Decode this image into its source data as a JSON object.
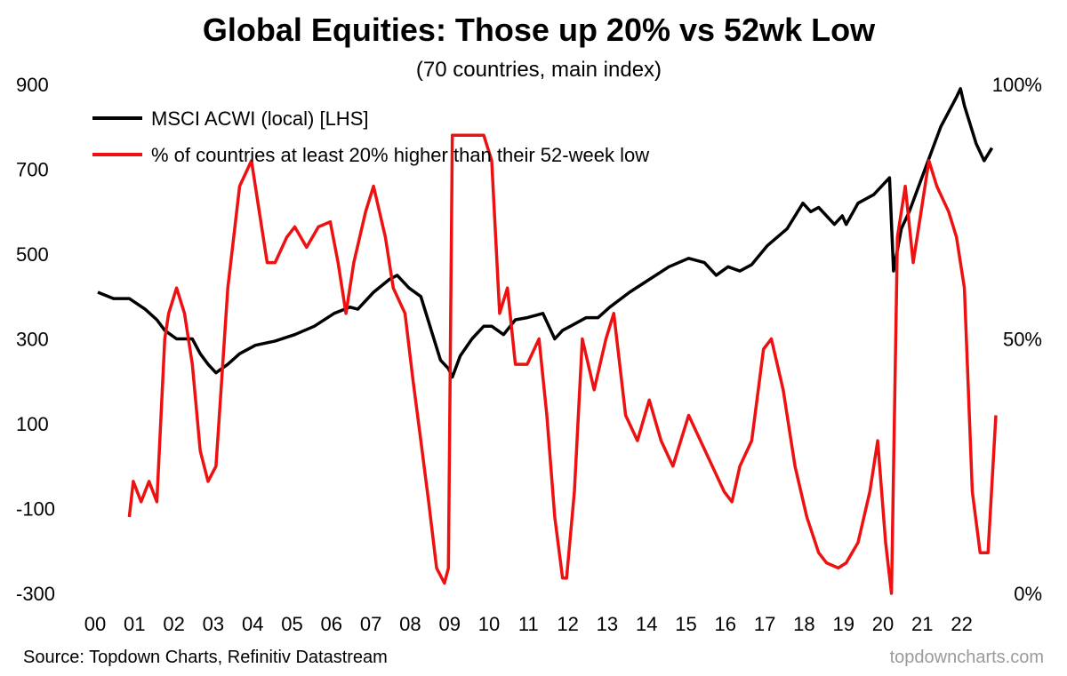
{
  "chart_data": {
    "type": "line",
    "title": "Global Equities: Those up 20% vs 52wk Low",
    "subtitle": "(70 countries, main index)",
    "source": "Source: Topdown Charts, Refinitiv Datastream",
    "brand": "topdowncharts.com",
    "x_tick_labels": [
      "00",
      "01",
      "02",
      "03",
      "04",
      "05",
      "06",
      "07",
      "08",
      "09",
      "10",
      "11",
      "12",
      "13",
      "14",
      "15",
      "16",
      "17",
      "18",
      "19",
      "20",
      "21",
      "22"
    ],
    "x_range": [
      2000.0,
      2023.0
    ],
    "left_axis": {
      "ticks": [
        900,
        700,
        500,
        300,
        100,
        -100,
        -300
      ],
      "labels": [
        "900",
        "700",
        "500",
        "300",
        "100",
        "-100",
        "-300"
      ],
      "range": [
        -300,
        900
      ]
    },
    "right_axis": {
      "ticks": [
        100,
        50,
        0
      ],
      "labels": [
        "100%",
        "50%",
        "0%"
      ],
      "range": [
        0,
        100
      ]
    },
    "series": [
      {
        "name": "MSCI ACWI (local) [LHS]",
        "axis": "left",
        "color": "#000000",
        "x": [
          2000.0,
          2000.4,
          2000.8,
          2001.2,
          2001.5,
          2001.7,
          2002.0,
          2002.4,
          2002.6,
          2002.8,
          2003.0,
          2003.3,
          2003.6,
          2004.0,
          2004.5,
          2005.0,
          2005.5,
          2006.0,
          2006.4,
          2006.6,
          2007.0,
          2007.4,
          2007.6,
          2007.9,
          2008.2,
          2008.5,
          2008.7,
          2008.9,
          2009.0,
          2009.2,
          2009.5,
          2009.8,
          2010.0,
          2010.3,
          2010.6,
          2010.9,
          2011.3,
          2011.6,
          2011.8,
          2012.0,
          2012.4,
          2012.7,
          2013.0,
          2013.5,
          2014.0,
          2014.5,
          2015.0,
          2015.4,
          2015.7,
          2016.0,
          2016.3,
          2016.6,
          2017.0,
          2017.5,
          2017.9,
          2018.1,
          2018.3,
          2018.7,
          2018.9,
          2019.0,
          2019.3,
          2019.7,
          2020.0,
          2020.1,
          2020.2,
          2020.4,
          2020.6,
          2021.0,
          2021.4,
          2021.8,
          2021.9,
          2022.0,
          2022.3,
          2022.5,
          2022.7
        ],
        "values": [
          410,
          395,
          395,
          370,
          345,
          320,
          300,
          300,
          265,
          240,
          220,
          240,
          265,
          285,
          295,
          310,
          330,
          360,
          375,
          370,
          410,
          440,
          450,
          420,
          400,
          310,
          250,
          230,
          210,
          260,
          300,
          330,
          330,
          310,
          345,
          350,
          360,
          300,
          320,
          330,
          350,
          350,
          375,
          410,
          440,
          470,
          490,
          480,
          450,
          470,
          460,
          475,
          520,
          560,
          620,
          600,
          610,
          570,
          590,
          570,
          620,
          640,
          670,
          680,
          460,
          560,
          600,
          700,
          800,
          870,
          890,
          850,
          760,
          720,
          750
        ]
      },
      {
        "name": "% of countries at least 20% higher than their 52-week low",
        "axis": "right",
        "color": "#ee1111",
        "x": [
          2000.8,
          2000.9,
          2001.1,
          2001.3,
          2001.5,
          2001.7,
          2001.8,
          2002.0,
          2002.2,
          2002.4,
          2002.6,
          2002.8,
          2003.0,
          2003.3,
          2003.6,
          2003.9,
          2004.1,
          2004.3,
          2004.5,
          2004.8,
          2005.0,
          2005.3,
          2005.6,
          2005.9,
          2006.1,
          2006.3,
          2006.5,
          2006.8,
          2007.0,
          2007.3,
          2007.5,
          2007.8,
          2008.0,
          2008.2,
          2008.4,
          2008.6,
          2008.8,
          2008.9,
          2009.0,
          2009.2,
          2009.5,
          2009.8,
          2010.0,
          2010.2,
          2010.4,
          2010.6,
          2010.9,
          2011.2,
          2011.4,
          2011.6,
          2011.8,
          2011.9,
          2012.1,
          2012.3,
          2012.6,
          2012.9,
          2013.1,
          2013.4,
          2013.7,
          2014.0,
          2014.3,
          2014.6,
          2015.0,
          2015.3,
          2015.6,
          2015.9,
          2016.1,
          2016.3,
          2016.6,
          2016.9,
          2017.1,
          2017.4,
          2017.7,
          2018.0,
          2018.3,
          2018.5,
          2018.8,
          2019.0,
          2019.3,
          2019.6,
          2019.8,
          2020.0,
          2020.15,
          2020.3,
          2020.5,
          2020.7,
          2020.9,
          2021.1,
          2021.3,
          2021.6,
          2021.8,
          2022.0,
          2022.2,
          2022.4,
          2022.6,
          2022.8
        ],
        "values": [
          15,
          22,
          18,
          22,
          18,
          50,
          55,
          60,
          55,
          45,
          28,
          22,
          25,
          60,
          80,
          85,
          75,
          65,
          65,
          70,
          72,
          68,
          72,
          73,
          65,
          55,
          65,
          75,
          80,
          70,
          60,
          55,
          42,
          30,
          18,
          5,
          2,
          5,
          90,
          90,
          90,
          90,
          85,
          55,
          60,
          45,
          45,
          50,
          35,
          15,
          3,
          3,
          20,
          50,
          40,
          50,
          55,
          35,
          30,
          38,
          30,
          25,
          35,
          30,
          25,
          20,
          18,
          25,
          30,
          48,
          50,
          40,
          25,
          15,
          8,
          6,
          5,
          6,
          10,
          20,
          30,
          10,
          0,
          70,
          80,
          65,
          75,
          85,
          80,
          75,
          70,
          60,
          20,
          8,
          8,
          35
        ]
      }
    ]
  }
}
